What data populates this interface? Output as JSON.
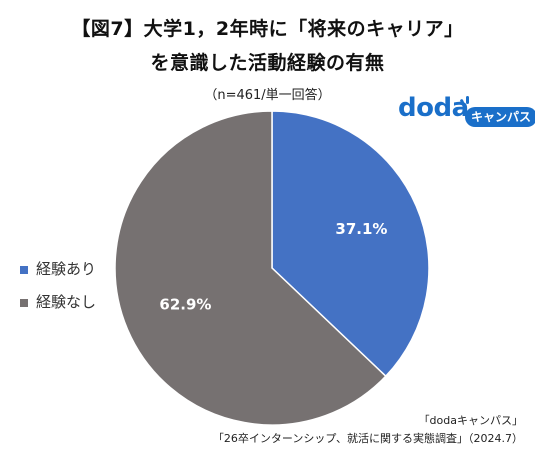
{
  "title_line1": "【図7】大学1，2年時に「将来のキャリア」",
  "title_line2": "を意識した活動経験の有無",
  "subtitle": "（n=461/単一回答）",
  "logo": {
    "word": "doda",
    "badge": "キャンパス",
    "color": "#1a6fc9"
  },
  "chart_data": {
    "type": "pie",
    "categories": [
      "経験あり",
      "経験なし"
    ],
    "values": [
      37.1,
      62.9
    ],
    "labels": [
      "37.1%",
      "62.9%"
    ],
    "colors": [
      "#4472c4",
      "#767171"
    ],
    "start_angle_deg": 0,
    "direction": "clockwise",
    "legend_position": "left"
  },
  "source_line1": "「dodaキャンパス」",
  "source_line2": "「26卒インターンシップ、就活に関する実態調査」（2024.7）"
}
